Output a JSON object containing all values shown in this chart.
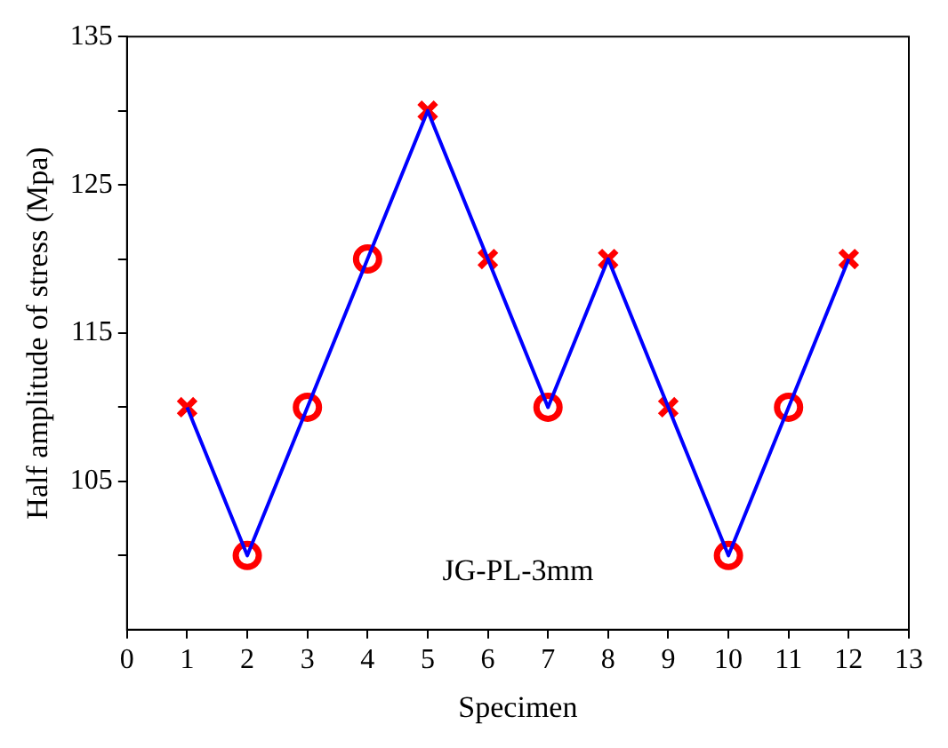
{
  "chart_data": {
    "type": "line",
    "xlabel": "Specimen",
    "ylabel": "Half amplitude of stress (Mpa)",
    "xlim": [
      0,
      13
    ],
    "xticks": [
      0,
      1,
      2,
      3,
      4,
      5,
      6,
      7,
      8,
      9,
      10,
      11,
      12,
      13
    ],
    "ylim": [
      95,
      135
    ],
    "yticks": [
      {
        "value": 100,
        "label": null
      },
      105,
      {
        "value": 110,
        "label": null
      },
      115,
      {
        "value": 120,
        "label": null
      },
      125,
      {
        "value": 130,
        "label": null
      },
      135
    ],
    "grid": false,
    "legend": false,
    "annotations": [
      "JG-PL-3mm"
    ],
    "series": [
      {
        "color": "#0000ff",
        "marker": "none",
        "x": [
          1,
          2,
          3,
          4,
          5,
          6,
          7,
          8,
          9,
          10,
          11,
          12
        ],
        "values": [
          110,
          100,
          110,
          120,
          130,
          120,
          110,
          120,
          110,
          100,
          110,
          120
        ]
      },
      {
        "type": "scatter",
        "color": "#ff0000",
        "marker": "cross",
        "x": [
          1,
          5,
          6,
          8,
          9,
          12
        ],
        "values": [
          110,
          130,
          120,
          120,
          110,
          120
        ]
      },
      {
        "type": "scatter",
        "color": "#ff0000",
        "marker": "circle",
        "x": [
          2,
          3,
          4,
          7,
          10,
          11
        ],
        "values": [
          100,
          110,
          120,
          110,
          100,
          110
        ]
      }
    ]
  }
}
